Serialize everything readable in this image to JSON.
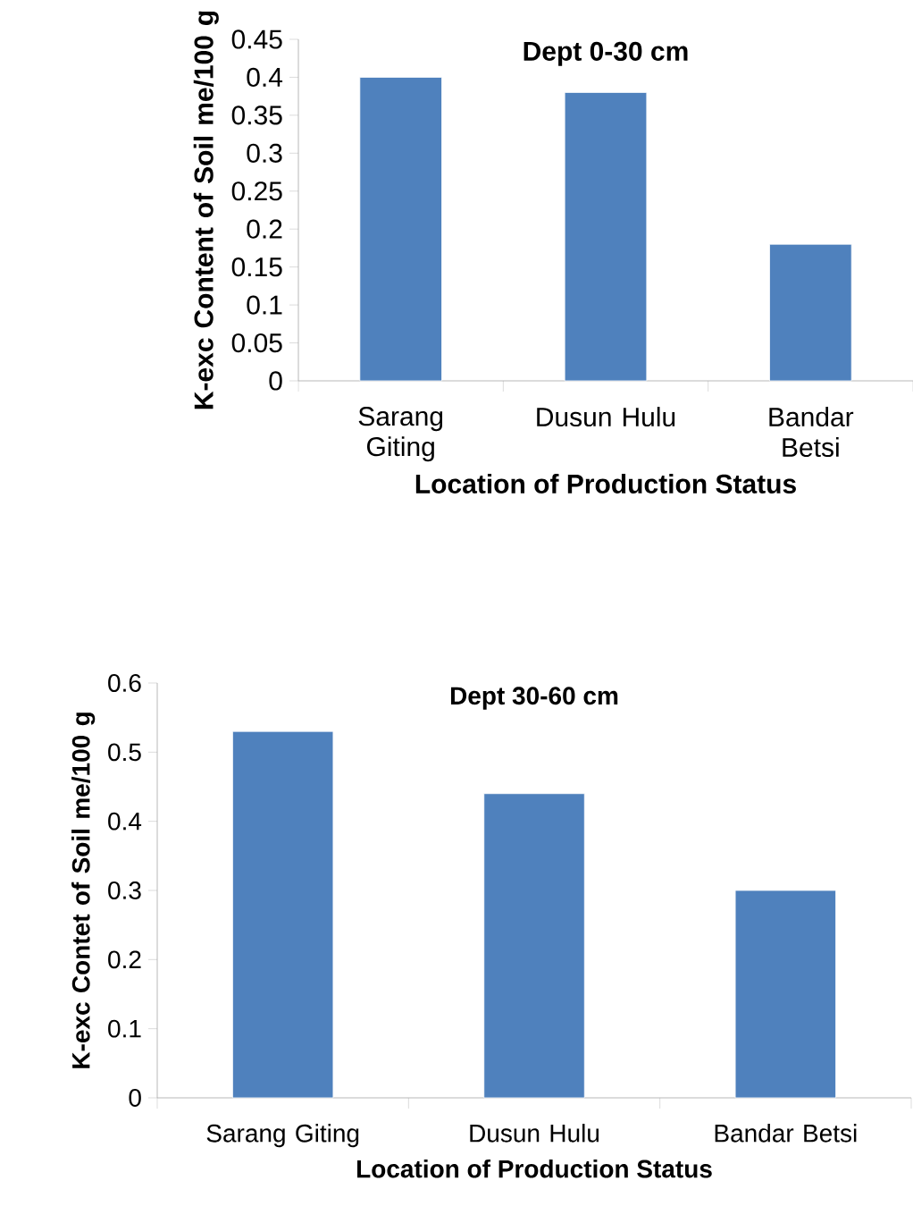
{
  "chart_data": [
    {
      "type": "bar",
      "title": "Dept 0-30 cm",
      "xlabel": "Location of Production Status",
      "ylabel": "K-exc Content of Soil me/100 g",
      "categories": [
        "Sarang Giting",
        "Dusun Hulu",
        "Bandar Betsi"
      ],
      "values": [
        0.4,
        0.38,
        0.18
      ],
      "color": "#4f81bd",
      "ylim": [
        0,
        0.45
      ],
      "yticks": [
        0,
        0.05,
        0.1,
        0.15,
        0.2,
        0.25,
        0.3,
        0.35,
        0.4,
        0.45
      ],
      "grid": false
    },
    {
      "type": "bar",
      "title": "Dept 30-60 cm",
      "xlabel": "Location of Production Status",
      "ylabel": "K-exc Contet of Soil me/100 g",
      "categories": [
        "Sarang Giting",
        "Dusun Hulu",
        "Bandar Betsi"
      ],
      "values": [
        0.53,
        0.44,
        0.3
      ],
      "color": "#4f81bd",
      "ylim": [
        0,
        0.6
      ],
      "yticks": [
        0,
        0.1,
        0.2,
        0.3,
        0.4,
        0.5,
        0.6
      ],
      "grid": false
    }
  ]
}
